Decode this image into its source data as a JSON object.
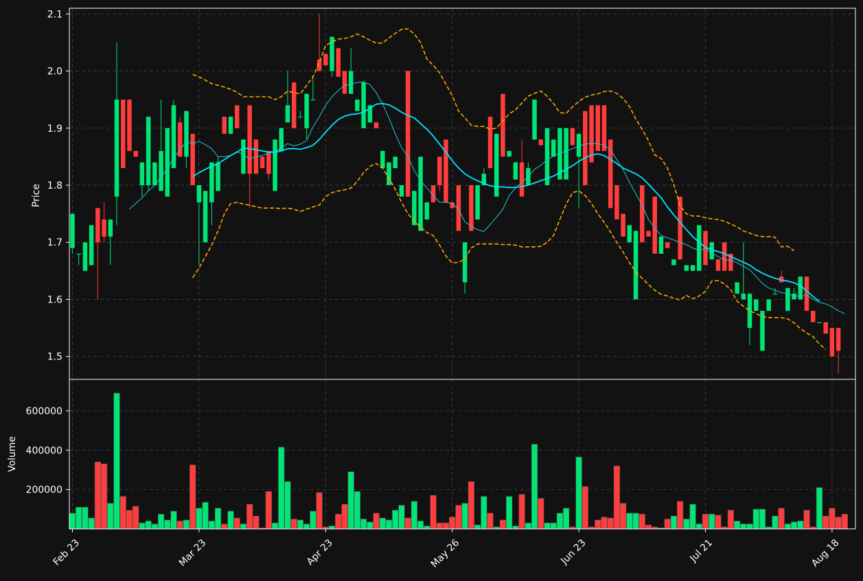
{
  "chart_data": {
    "type": "candlestick",
    "colors": {
      "background": "#121212",
      "up": "#00e676",
      "down": "#ff3d3d",
      "fast_ma": "#00e5ff",
      "slow_ma": "#26c6da",
      "bands": "#ffa500",
      "text": "#ffffff",
      "grid": "#3a3a3a",
      "frame": "#ffffff"
    },
    "x_ticks": [
      "Feb 23",
      "Mar 23",
      "Apr 23",
      "May 26",
      "Jun 23",
      "Jul 21",
      "Aug 18"
    ],
    "x_tick_index": [
      0,
      20,
      40,
      60,
      80,
      100,
      120
    ],
    "price_panel": {
      "ylabel": "Price",
      "ylim": [
        1.46,
        2.11
      ],
      "y_ticks": [
        1.5,
        1.6,
        1.7,
        1.8,
        1.9,
        2.0,
        2.1
      ],
      "grid": true
    },
    "volume_panel": {
      "ylabel": "Volume",
      "ylim": [
        0,
        760000
      ],
      "y_ticks": [
        200000,
        400000,
        600000
      ],
      "grid": true
    },
    "candles": [
      [
        1.69,
        1.75,
        1.68,
        1.75
      ],
      [
        1.68,
        1.68,
        1.66,
        1.68
      ],
      [
        1.65,
        1.7,
        1.65,
        1.7
      ],
      [
        1.66,
        1.73,
        1.66,
        1.73
      ],
      [
        1.76,
        1.76,
        1.6,
        1.7
      ],
      [
        1.74,
        1.77,
        1.7,
        1.71
      ],
      [
        1.71,
        1.74,
        1.66,
        1.74
      ],
      [
        1.78,
        2.05,
        1.73,
        1.95
      ],
      [
        1.95,
        1.95,
        1.83,
        1.83
      ],
      [
        1.95,
        1.95,
        1.86,
        1.86
      ],
      [
        1.86,
        1.86,
        1.85,
        1.85
      ],
      [
        1.8,
        1.84,
        1.78,
        1.84
      ],
      [
        1.8,
        1.92,
        1.79,
        1.92
      ],
      [
        1.8,
        1.84,
        1.8,
        1.84
      ],
      [
        1.79,
        1.95,
        1.79,
        1.86
      ],
      [
        1.78,
        1.9,
        1.78,
        1.9
      ],
      [
        1.83,
        1.95,
        1.83,
        1.94
      ],
      [
        1.91,
        1.92,
        1.85,
        1.85
      ],
      [
        1.85,
        1.93,
        1.83,
        1.93
      ],
      [
        1.89,
        1.89,
        1.8,
        1.8
      ],
      [
        1.77,
        1.8,
        1.66,
        1.8
      ],
      [
        1.7,
        1.79,
        1.7,
        1.79
      ],
      [
        1.77,
        1.84,
        1.73,
        1.84
      ],
      [
        1.79,
        1.85,
        1.79,
        1.84
      ],
      [
        1.92,
        1.92,
        1.89,
        1.89
      ],
      [
        1.89,
        1.92,
        1.89,
        1.92
      ],
      [
        1.94,
        1.94,
        1.9,
        1.9
      ],
      [
        1.82,
        1.88,
        1.82,
        1.88
      ],
      [
        1.94,
        1.94,
        1.76,
        1.82
      ],
      [
        1.88,
        1.88,
        1.82,
        1.82
      ],
      [
        1.85,
        1.85,
        1.83,
        1.83
      ],
      [
        1.86,
        1.86,
        1.81,
        1.82
      ],
      [
        1.79,
        1.88,
        1.79,
        1.88
      ],
      [
        1.86,
        1.9,
        1.86,
        1.9
      ],
      [
        1.91,
        2.0,
        1.91,
        1.94
      ],
      [
        1.98,
        1.98,
        1.9,
        1.9
      ],
      [
        1.92,
        1.93,
        1.92,
        1.92
      ],
      [
        1.9,
        1.96,
        1.88,
        1.96
      ],
      [
        1.95,
        1.99,
        1.95,
        1.95
      ],
      [
        2.02,
        2.1,
        2.0,
        2.0
      ],
      [
        2.03,
        2.03,
        2.01,
        2.01
      ],
      [
        2.0,
        2.06,
        1.99,
        2.06
      ],
      [
        2.04,
        2.04,
        1.99,
        1.99
      ],
      [
        2.0,
        2.0,
        1.96,
        1.96
      ],
      [
        1.96,
        2.04,
        1.96,
        2.0
      ],
      [
        1.93,
        1.95,
        1.93,
        1.95
      ],
      [
        1.9,
        1.98,
        1.9,
        1.98
      ],
      [
        1.91,
        1.94,
        1.91,
        1.94
      ],
      [
        1.91,
        1.91,
        1.9,
        1.9
      ],
      [
        1.83,
        1.86,
        1.83,
        1.86
      ],
      [
        1.8,
        1.84,
        1.8,
        1.84
      ],
      [
        1.83,
        1.85,
        1.83,
        1.85
      ],
      [
        1.78,
        1.8,
        1.78,
        1.8
      ],
      [
        2.0,
        2.0,
        1.78,
        1.78
      ],
      [
        1.73,
        1.79,
        1.73,
        1.79
      ],
      [
        1.72,
        1.85,
        1.72,
        1.85
      ],
      [
        1.74,
        1.77,
        1.74,
        1.77
      ],
      [
        1.8,
        1.8,
        1.77,
        1.77
      ],
      [
        1.85,
        1.85,
        1.79,
        1.8
      ],
      [
        1.88,
        1.88,
        1.77,
        1.77
      ],
      [
        1.77,
        1.77,
        1.76,
        1.76
      ],
      [
        1.8,
        1.8,
        1.72,
        1.72
      ],
      [
        1.63,
        1.7,
        1.61,
        1.7
      ],
      [
        1.8,
        1.8,
        1.72,
        1.72
      ],
      [
        1.74,
        1.8,
        1.74,
        1.8
      ],
      [
        1.8,
        1.83,
        1.8,
        1.82
      ],
      [
        1.92,
        1.92,
        1.83,
        1.83
      ],
      [
        1.78,
        1.89,
        1.78,
        1.89
      ],
      [
        1.96,
        1.96,
        1.85,
        1.85
      ],
      [
        1.85,
        1.86,
        1.85,
        1.86
      ],
      [
        1.81,
        1.84,
        1.81,
        1.84
      ],
      [
        1.84,
        1.88,
        1.78,
        1.78
      ],
      [
        1.8,
        1.84,
        1.8,
        1.83
      ],
      [
        1.88,
        1.95,
        1.88,
        1.95
      ],
      [
        1.88,
        1.88,
        1.87,
        1.87
      ],
      [
        1.8,
        1.9,
        1.8,
        1.9
      ],
      [
        1.85,
        1.88,
        1.85,
        1.88
      ],
      [
        1.81,
        1.9,
        1.81,
        1.9
      ],
      [
        1.81,
        1.9,
        1.81,
        1.9
      ],
      [
        1.9,
        1.9,
        1.87,
        1.87
      ],
      [
        1.85,
        1.89,
        1.76,
        1.89
      ],
      [
        1.93,
        1.93,
        1.8,
        1.8
      ],
      [
        1.94,
        1.94,
        1.84,
        1.84
      ],
      [
        1.94,
        1.94,
        1.86,
        1.86
      ],
      [
        1.94,
        1.94,
        1.86,
        1.86
      ],
      [
        1.88,
        1.88,
        1.76,
        1.76
      ],
      [
        1.8,
        1.8,
        1.74,
        1.74
      ],
      [
        1.75,
        1.75,
        1.71,
        1.71
      ],
      [
        1.7,
        1.73,
        1.7,
        1.73
      ],
      [
        1.6,
        1.72,
        1.6,
        1.72
      ],
      [
        1.8,
        1.8,
        1.7,
        1.7
      ],
      [
        1.72,
        1.72,
        1.71,
        1.71
      ],
      [
        1.78,
        1.78,
        1.68,
        1.68
      ],
      [
        1.68,
        1.71,
        1.68,
        1.71
      ],
      [
        1.7,
        1.7,
        1.69,
        1.69
      ],
      [
        1.66,
        1.67,
        1.66,
        1.67
      ],
      [
        1.78,
        1.78,
        1.67,
        1.67
      ],
      [
        1.65,
        1.66,
        1.65,
        1.66
      ],
      [
        1.65,
        1.66,
        1.65,
        1.66
      ],
      [
        1.65,
        1.73,
        1.65,
        1.73
      ],
      [
        1.72,
        1.72,
        1.66,
        1.66
      ],
      [
        1.67,
        1.7,
        1.67,
        1.7
      ],
      [
        1.67,
        1.67,
        1.65,
        1.65
      ],
      [
        1.7,
        1.7,
        1.65,
        1.65
      ],
      [
        1.68,
        1.68,
        1.65,
        1.65
      ],
      [
        1.61,
        1.63,
        1.61,
        1.63
      ],
      [
        1.6,
        1.7,
        1.6,
        1.61
      ],
      [
        1.55,
        1.61,
        1.52,
        1.61
      ],
      [
        1.58,
        1.6,
        1.58,
        1.6
      ],
      [
        1.51,
        1.58,
        1.51,
        1.58
      ],
      [
        1.58,
        1.6,
        1.58,
        1.6
      ],
      [
        1.61,
        1.62,
        1.61,
        1.61
      ],
      [
        1.64,
        1.65,
        1.63,
        1.63
      ],
      [
        1.58,
        1.62,
        1.58,
        1.62
      ],
      [
        1.6,
        1.62,
        1.6,
        1.61
      ],
      [
        1.6,
        1.64,
        1.6,
        1.64
      ],
      [
        1.64,
        1.64,
        1.58,
        1.58
      ],
      [
        1.58,
        1.58,
        1.56,
        1.56
      ],
      [
        1.56,
        1.56,
        1.56,
        1.56
      ],
      [
        1.56,
        1.56,
        1.54,
        1.54
      ],
      [
        1.55,
        1.55,
        1.5,
        1.5
      ],
      [
        1.55,
        1.55,
        1.47,
        1.51
      ]
    ],
    "volume": [
      80000,
      110000,
      110000,
      55000,
      340000,
      330000,
      130000,
      690000,
      165000,
      95000,
      115000,
      30000,
      40000,
      25000,
      75000,
      45000,
      90000,
      40000,
      45000,
      325000,
      105000,
      135000,
      40000,
      105000,
      25000,
      90000,
      55000,
      25000,
      125000,
      65000,
      5000,
      190000,
      30000,
      415000,
      240000,
      50000,
      45000,
      25000,
      90000,
      185000,
      10000,
      15000,
      75000,
      125000,
      290000,
      190000,
      50000,
      35000,
      80000,
      55000,
      45000,
      95000,
      120000,
      55000,
      140000,
      40000,
      15000,
      170000,
      30000,
      30000,
      60000,
      120000,
      130000,
      240000,
      20000,
      165000,
      80000,
      10000,
      45000,
      165000,
      15000,
      175000,
      30000,
      430000,
      155000,
      30000,
      30000,
      80000,
      105000,
      10000,
      365000,
      215000,
      10000,
      45000,
      60000,
      55000,
      320000,
      130000,
      80000,
      80000,
      75000,
      20000,
      10000,
      5000,
      50000,
      65000,
      140000,
      50000,
      125000,
      25000,
      75000,
      75000,
      70000,
      10000,
      95000,
      40000,
      25000,
      25000,
      100000,
      100000,
      10000,
      65000,
      105000,
      25000,
      35000,
      40000,
      95000,
      10000,
      210000,
      65000,
      105000,
      60000,
      75000
    ],
    "fast_ma": [
      null,
      null,
      null,
      null,
      null,
      null,
      null,
      null,
      null,
      null,
      null,
      null,
      null,
      null,
      null,
      null,
      null,
      null,
      null,
      1.815,
      1.822,
      1.828,
      1.833,
      1.838,
      1.845,
      1.852,
      1.858,
      1.865,
      1.864,
      1.862,
      1.86,
      1.858,
      1.858,
      1.86,
      1.864,
      1.864,
      1.863,
      1.866,
      1.87,
      1.88,
      1.893,
      1.905,
      1.915,
      1.921,
      1.924,
      1.925,
      1.928,
      1.935,
      1.942,
      1.943,
      1.941,
      1.935,
      1.928,
      1.922,
      1.918,
      1.908,
      1.898,
      1.886,
      1.872,
      1.858,
      1.843,
      1.83,
      1.82,
      1.813,
      1.808,
      1.803,
      1.799,
      1.797,
      1.797,
      1.796,
      1.796,
      1.798,
      1.8,
      1.804,
      1.808,
      1.812,
      1.816,
      1.822,
      1.828,
      1.834,
      1.842,
      1.848,
      1.853,
      1.855,
      1.852,
      1.845,
      1.838,
      1.83,
      1.825,
      1.82,
      1.813,
      1.802,
      1.79,
      1.778,
      1.762,
      1.748,
      1.735,
      1.722,
      1.71,
      1.7,
      1.691,
      1.687,
      1.684,
      1.68,
      1.675,
      1.67,
      1.665,
      1.66,
      1.652,
      1.646,
      1.641,
      1.637,
      1.634,
      1.632,
      1.629,
      1.624,
      1.615,
      1.605,
      1.597
    ],
    "slow_ma": [
      null,
      null,
      null,
      null,
      null,
      null,
      null,
      null,
      null,
      1.758,
      1.768,
      1.778,
      1.79,
      1.8,
      1.814,
      1.83,
      1.848,
      1.862,
      1.877,
      1.872,
      1.877,
      1.871,
      1.864,
      1.85,
      1.85,
      1.852,
      1.859,
      1.853,
      1.846,
      1.85,
      1.852,
      1.856,
      1.859,
      1.865,
      1.873,
      1.869,
      1.872,
      1.878,
      1.902,
      1.92,
      1.94,
      1.955,
      1.966,
      1.975,
      1.977,
      1.98,
      1.981,
      1.976,
      1.962,
      1.942,
      1.918,
      1.89,
      1.866,
      1.85,
      1.826,
      1.808,
      1.795,
      1.782,
      1.77,
      1.77,
      1.768,
      1.758,
      1.736,
      1.728,
      1.722,
      1.719,
      1.731,
      1.744,
      1.758,
      1.782,
      1.795,
      1.805,
      1.815,
      1.828,
      1.835,
      1.845,
      1.851,
      1.856,
      1.86,
      1.864,
      1.868,
      1.872,
      1.873,
      1.873,
      1.87,
      1.862,
      1.845,
      1.827,
      1.805,
      1.785,
      1.765,
      1.74,
      1.725,
      1.712,
      1.708,
      1.704,
      1.7,
      1.696,
      1.69,
      1.686,
      1.689,
      1.681,
      1.675,
      1.669,
      1.669,
      1.664,
      1.658,
      1.652,
      1.64,
      1.628,
      1.62,
      1.616,
      1.612,
      1.609,
      1.607,
      1.605,
      1.608,
      1.6,
      1.595,
      1.592,
      1.587,
      1.58,
      1.575
    ],
    "upper_band": [
      null,
      null,
      null,
      null,
      null,
      null,
      null,
      null,
      null,
      null,
      null,
      null,
      null,
      null,
      null,
      null,
      null,
      null,
      null,
      1.994,
      1.99,
      1.984,
      1.978,
      1.975,
      1.972,
      1.968,
      1.963,
      1.955,
      1.955,
      1.955,
      1.955,
      1.955,
      1.95,
      1.955,
      1.965,
      1.962,
      1.96,
      1.975,
      1.99,
      2.015,
      2.045,
      2.051,
      2.056,
      2.057,
      2.06,
      2.065,
      2.06,
      2.054,
      2.049,
      2.049,
      2.058,
      2.066,
      2.073,
      2.074,
      2.065,
      2.05,
      2.021,
      2.01,
      1.997,
      1.977,
      1.957,
      1.93,
      1.918,
      1.905,
      1.903,
      1.903,
      1.898,
      1.9,
      1.913,
      1.925,
      1.932,
      1.944,
      1.956,
      1.961,
      1.965,
      1.956,
      1.943,
      1.927,
      1.926,
      1.937,
      1.947,
      1.954,
      1.958,
      1.96,
      1.964,
      1.965,
      1.961,
      1.952,
      1.938,
      1.916,
      1.898,
      1.878,
      1.853,
      1.847,
      1.83,
      1.801,
      1.764,
      1.75,
      1.746,
      1.746,
      1.743,
      1.741,
      1.74,
      1.737,
      1.732,
      1.727,
      1.72,
      1.716,
      1.712,
      1.71,
      1.71,
      1.709,
      1.692,
      1.693,
      1.685
    ],
    "lower_band": [
      null,
      null,
      null,
      null,
      null,
      null,
      null,
      null,
      null,
      null,
      null,
      null,
      null,
      null,
      null,
      null,
      null,
      null,
      null,
      1.638,
      1.655,
      1.675,
      1.695,
      1.72,
      1.75,
      1.768,
      1.77,
      1.767,
      1.765,
      1.762,
      1.76,
      1.76,
      1.76,
      1.759,
      1.76,
      1.758,
      1.754,
      1.758,
      1.762,
      1.765,
      1.78,
      1.787,
      1.79,
      1.792,
      1.795,
      1.807,
      1.822,
      1.833,
      1.838,
      1.83,
      1.812,
      1.793,
      1.77,
      1.75,
      1.737,
      1.727,
      1.717,
      1.712,
      1.695,
      1.676,
      1.664,
      1.665,
      1.67,
      1.69,
      1.697,
      1.697,
      1.697,
      1.697,
      1.696,
      1.696,
      1.695,
      1.692,
      1.692,
      1.692,
      1.693,
      1.7,
      1.712,
      1.74,
      1.767,
      1.787,
      1.79,
      1.782,
      1.768,
      1.75,
      1.735,
      1.718,
      1.7,
      1.683,
      1.664,
      1.648,
      1.637,
      1.626,
      1.616,
      1.609,
      1.606,
      1.602,
      1.599,
      1.607,
      1.601,
      1.606,
      1.614,
      1.632,
      1.633,
      1.627,
      1.617,
      1.597,
      1.588,
      1.58,
      1.575,
      1.57,
      1.568,
      1.568,
      1.568,
      1.566,
      1.559,
      1.549,
      1.541,
      1.535,
      1.522,
      1.512
    ]
  }
}
